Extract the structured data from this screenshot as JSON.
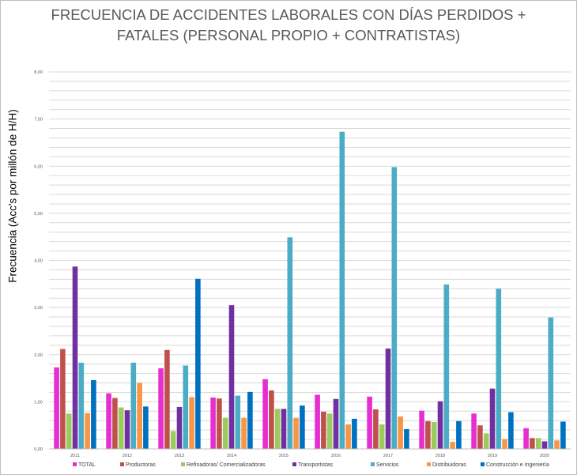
{
  "chart_data": {
    "type": "bar",
    "title_lines": [
      "FRECUENCIA DE ACCIDENTES LABORALES CON DÍAS PERDIDOS +",
      "FATALES (PERSONAL PROPIO + CONTRATISTAS)"
    ],
    "ylabel": "Frecuencia (Acc's por millón de H/H)",
    "xlabel": "",
    "ylim": [
      0,
      8
    ],
    "y_ticks": [
      "0,00",
      "1,00",
      "2,00",
      "3,00",
      "4,00",
      "5,00",
      "6,00",
      "7,00",
      "8,00"
    ],
    "grid": true,
    "grid_step": 0.2,
    "legend_position": "bottom",
    "categories": [
      "2011",
      "2012",
      "2013",
      "2014",
      "2015",
      "2016",
      "2017",
      "2018",
      "2019",
      "2020"
    ],
    "series": [
      {
        "name": "TOTAL",
        "color": "#e62fd0",
        "values": [
          1.73,
          1.18,
          1.71,
          1.09,
          1.48,
          1.15,
          1.11,
          0.81,
          0.75,
          0.44
        ]
      },
      {
        "name": "Productoras",
        "color": "#c0504d",
        "values": [
          2.12,
          1.08,
          2.1,
          1.07,
          1.24,
          0.79,
          0.84,
          0.59,
          0.5,
          0.23
        ]
      },
      {
        "name": "Refinadoras/  Comercializadoras",
        "color": "#9bcb5c",
        "values": [
          0.75,
          0.88,
          0.38,
          0.66,
          0.85,
          0.75,
          0.52,
          0.57,
          0.33,
          0.23
        ]
      },
      {
        "name": "Transportistas",
        "color": "#7030a0",
        "values": [
          3.87,
          0.82,
          0.89,
          3.05,
          0.85,
          1.06,
          2.13,
          1.01,
          1.28,
          0.16
        ]
      },
      {
        "name": "Servicios",
        "color": "#4bacc6",
        "values": [
          1.83,
          1.83,
          1.77,
          1.13,
          4.49,
          6.73,
          5.98,
          3.49,
          3.4,
          2.79
        ]
      },
      {
        "name": "Distribuidoras",
        "color": "#f79646",
        "values": [
          0.76,
          1.4,
          1.1,
          0.66,
          0.66,
          0.52,
          0.69,
          0.15,
          0.21,
          0.18
        ]
      },
      {
        "name": "Construcción e Ingeniería",
        "color": "#0070c0",
        "values": [
          1.46,
          0.9,
          3.61,
          1.21,
          0.92,
          0.64,
          0.42,
          0.59,
          0.78,
          0.58
        ]
      }
    ]
  }
}
